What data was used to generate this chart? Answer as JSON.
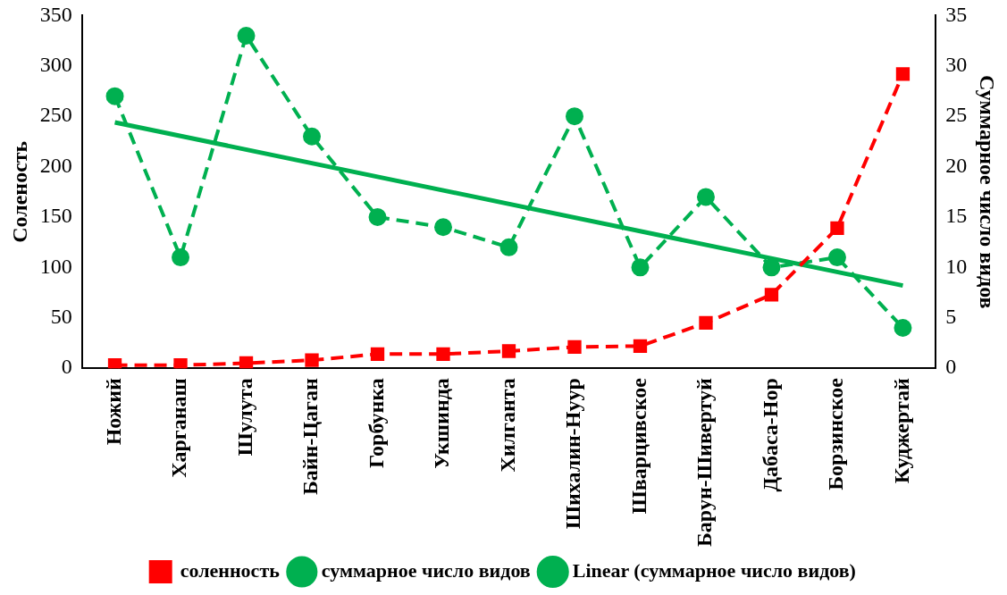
{
  "chart_data": {
    "type": "line",
    "categories": [
      "Ножий",
      "Харганаш",
      "Шулута",
      "Байн-Цаган",
      "Горбунка",
      "Укшинда",
      "Хилганта",
      "Шихалин-Нуур",
      "Шварцивское",
      "Барун-Шивертуй",
      "Дабаса-Нор",
      "Борзинское",
      "Куджертай"
    ],
    "ylabel": "Соленость",
    "y2label": "Суммарное число видов",
    "ylim": [
      0,
      350
    ],
    "yticks": [
      0,
      50,
      100,
      150,
      200,
      250,
      300,
      350
    ],
    "y2lim": [
      0,
      35
    ],
    "y2ticks": [
      0,
      5,
      10,
      15,
      20,
      25,
      30,
      35
    ],
    "grid": false,
    "legend": "bottom",
    "series": [
      {
        "name": "соленность",
        "color": "#ff0000",
        "marker": "square",
        "line_style": "dashed",
        "values": [
          3,
          3,
          5,
          8,
          14,
          14,
          17,
          21,
          22,
          45,
          73,
          139,
          292
        ]
      },
      {
        "name": "суммарное число видов",
        "color": "#00b050",
        "marker": "circle",
        "line_style": "dashed",
        "axis": "y2",
        "values": [
          27,
          11,
          33,
          23,
          15,
          14,
          12,
          25,
          10,
          17,
          10,
          11,
          4
        ]
      },
      {
        "name": "Linear (суммарное число видов)",
        "color": "#00b050",
        "marker": "none",
        "line_style": "solid",
        "axis": "y2",
        "values": [
          24.4,
          null,
          null,
          null,
          null,
          null,
          null,
          null,
          null,
          null,
          null,
          null,
          8.2
        ]
      }
    ]
  }
}
